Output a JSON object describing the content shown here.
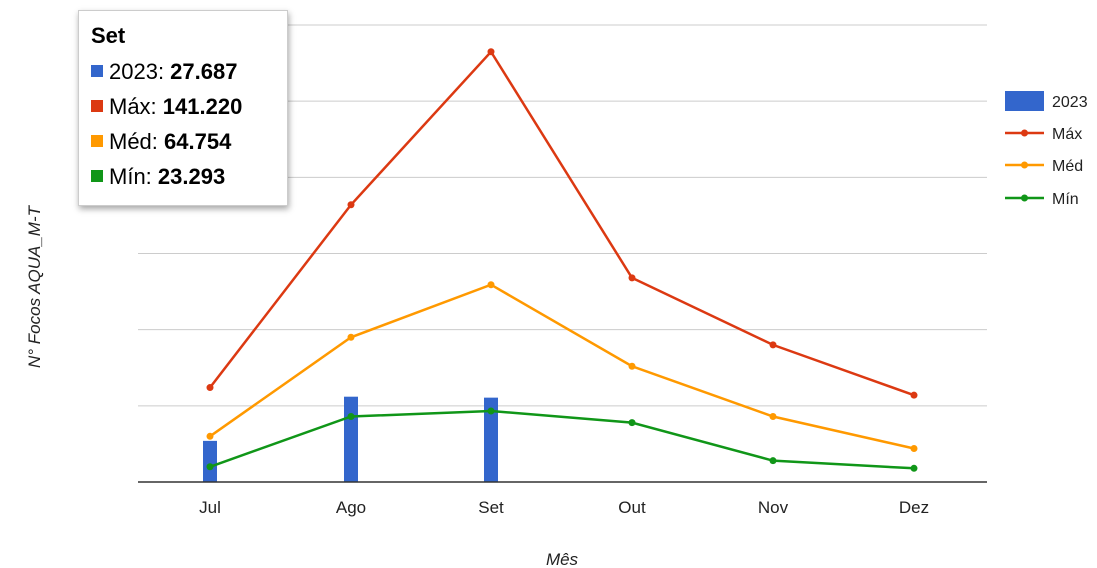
{
  "chart_data": {
    "type": "bar+line",
    "xlabel": "Mês",
    "ylabel": "N° Focos AQUA_M-T",
    "categories": [
      "Jul",
      "Ago",
      "Set",
      "Out",
      "Nov",
      "Dez"
    ],
    "ylim": [
      0,
      150000
    ],
    "grid": true,
    "legend_position": "right",
    "series": [
      {
        "name": "2023",
        "type": "bar",
        "color": "#3366cc",
        "values": [
          13500,
          28000,
          27687,
          null,
          null,
          null
        ]
      },
      {
        "name": "Máx",
        "type": "line",
        "color": "#dc3912",
        "values": [
          31000,
          91000,
          141220,
          67000,
          45000,
          28500
        ]
      },
      {
        "name": "Méd",
        "type": "line",
        "color": "#ff9900",
        "values": [
          15000,
          47500,
          64754,
          38000,
          21500,
          11000
        ]
      },
      {
        "name": "Mín",
        "type": "line",
        "color": "#109618",
        "values": [
          5000,
          21500,
          23293,
          19500,
          7000,
          4500
        ]
      }
    ]
  },
  "tooltip": {
    "title": "Set",
    "rows": [
      {
        "label": "2023: ",
        "value": "27.687",
        "color": "#3366cc"
      },
      {
        "label": "Máx: ",
        "value": "141.220",
        "color": "#dc3912"
      },
      {
        "label": "Méd: ",
        "value": "64.754",
        "color": "#ff9900"
      },
      {
        "label": "Mín: ",
        "value": "23.293",
        "color": "#109618"
      }
    ]
  }
}
